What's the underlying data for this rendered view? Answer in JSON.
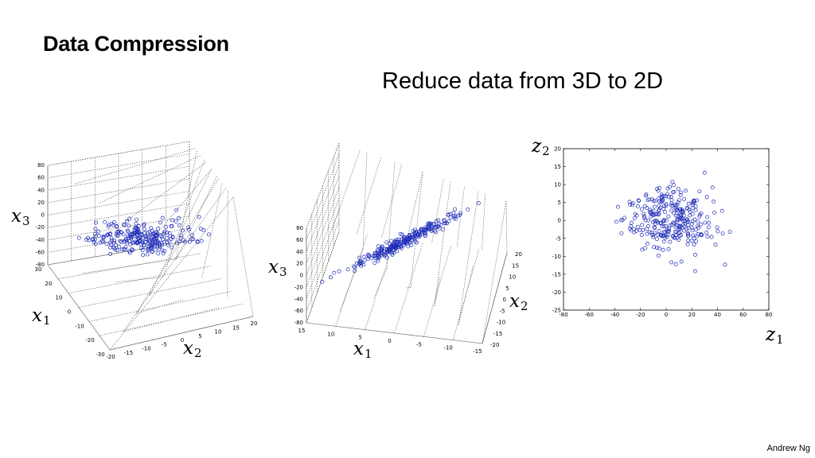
{
  "slide": {
    "title": "Data Compression",
    "subtitle": "Reduce data from 3D to 2D",
    "author": "Andrew Ng"
  },
  "colors": {
    "point": "#1f2db8",
    "grid": "#555555"
  },
  "labels": {
    "plot1": {
      "x3": {
        "base": "x",
        "sub": "3"
      },
      "x1": {
        "base": "x",
        "sub": "1"
      },
      "x2": {
        "base": "x",
        "sub": "2"
      }
    },
    "plot2": {
      "x3": {
        "base": "x",
        "sub": "3"
      },
      "x1": {
        "base": "x",
        "sub": "1"
      },
      "x2": {
        "base": "x",
        "sub": "2"
      }
    },
    "plot3": {
      "z2": {
        "base": "z",
        "sub": "2"
      },
      "z1": {
        "base": "z",
        "sub": "1"
      }
    }
  },
  "chart_data": [
    {
      "type": "scatter",
      "name_hint": "3d-scatter-cloud",
      "axes3d": {
        "x3_ticks": [
          "80",
          "60",
          "40",
          "20",
          "0",
          "-20",
          "-40",
          "-60",
          "-80"
        ],
        "x1_ticks": [
          "30",
          "20",
          "10",
          "0",
          "-10",
          "-20",
          "-30"
        ],
        "x2_ticks": [
          "-20",
          "-15",
          "-10",
          "-5",
          "0",
          "5",
          "10",
          "15",
          "20"
        ]
      },
      "grid": true,
      "point_count": 260
    },
    {
      "type": "scatter",
      "name_hint": "3d-scatter-plane",
      "axes3d": {
        "x3_ticks": [
          "80",
          "60",
          "40",
          "20",
          "0",
          "-20",
          "-40",
          "-60",
          "-80"
        ],
        "x1_ticks": [
          "15",
          "10",
          "5",
          "0",
          "-5",
          "-10",
          "-15"
        ],
        "x2_ticks": [
          "20",
          "15",
          "10",
          "5",
          "0",
          "-5",
          "-10",
          "-15",
          "-20"
        ]
      },
      "grid": true,
      "point_count": 260
    },
    {
      "type": "scatter",
      "name_hint": "2d-projection",
      "xlim": [
        -80,
        80
      ],
      "ylim": [
        -25,
        20
      ],
      "xticks": [
        "-80",
        "-60",
        "-40",
        "-20",
        "0",
        "20",
        "40",
        "60",
        "80"
      ],
      "yticks": [
        "20",
        "15",
        "10",
        "5",
        "0",
        "-5",
        "-10",
        "-15",
        "-20",
        "-25"
      ],
      "grid": false,
      "point_count": 300
    }
  ]
}
